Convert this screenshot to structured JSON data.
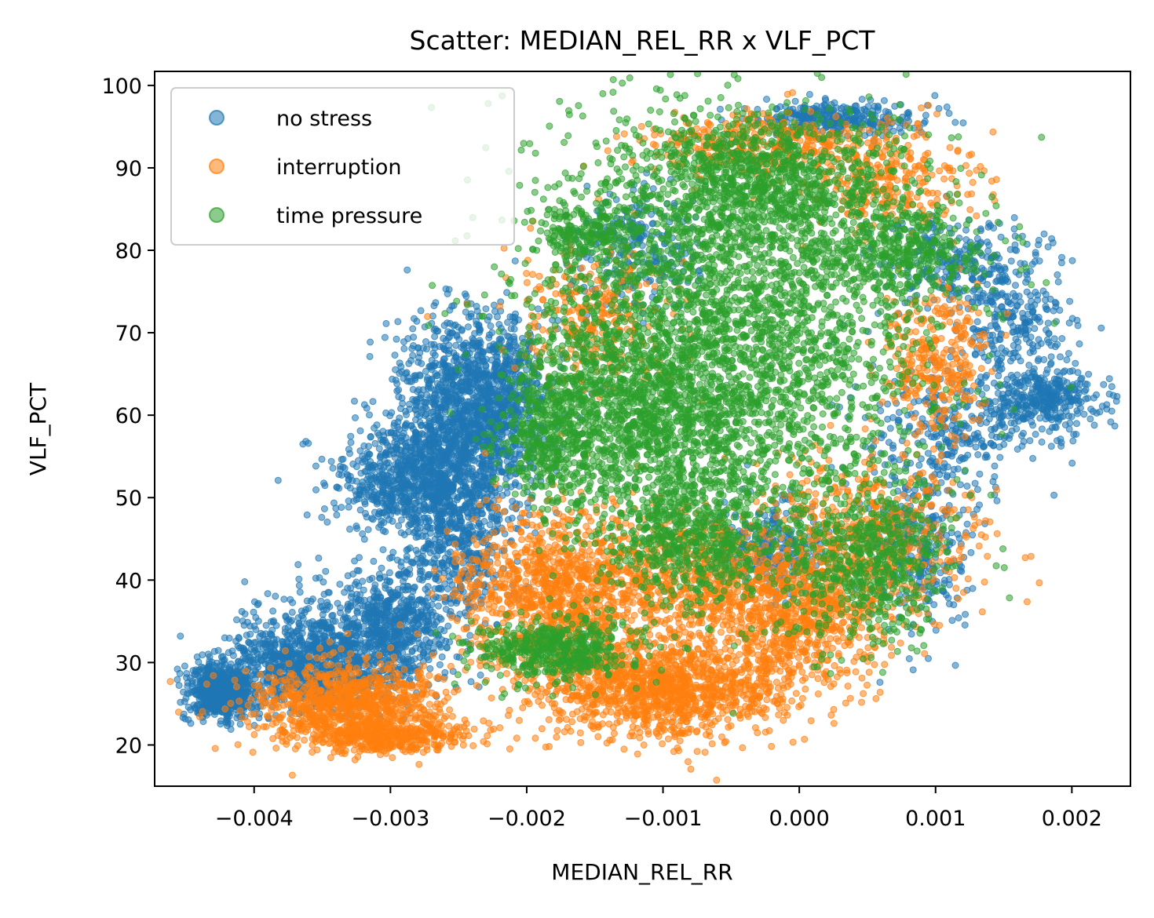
{
  "chart_data": {
    "type": "scatter",
    "title": "Scatter: MEDIAN_REL_RR x VLF_PCT",
    "xlabel": "MEDIAN_REL_RR",
    "ylabel": "VLF_PCT",
    "xlim": [
      -0.00473,
      0.00243
    ],
    "ylim": [
      15,
      101.7
    ],
    "x_ticks": [
      -0.004,
      -0.003,
      -0.002,
      -0.001,
      0.0,
      0.001,
      0.002
    ],
    "x_tick_labels": [
      "−0.004",
      "−0.003",
      "−0.002",
      "−0.001",
      "0.000",
      "0.001",
      "0.002"
    ],
    "y_ticks": [
      20,
      30,
      40,
      50,
      60,
      70,
      80,
      90,
      100
    ],
    "y_tick_labels": [
      "20",
      "30",
      "40",
      "50",
      "60",
      "70",
      "80",
      "90",
      "100"
    ],
    "grid": false,
    "legend": {
      "placement": "top-left"
    },
    "series": [
      {
        "name": "no stress",
        "color": "#1f77b4",
        "clusters": [
          {
            "x": -0.00425,
            "y": 26.5,
            "sx": 0.00012,
            "sy": 1.6,
            "n": 700
          },
          {
            "x": -0.0036,
            "y": 30.0,
            "sx": 0.0003,
            "sy": 3.0,
            "n": 900
          },
          {
            "x": -0.003,
            "y": 34.0,
            "sx": 0.00025,
            "sy": 3.5,
            "n": 700
          },
          {
            "x": -0.0028,
            "y": 52.0,
            "sx": 0.0003,
            "sy": 3.0,
            "n": 800
          },
          {
            "x": -0.0025,
            "y": 60.0,
            "sx": 0.00025,
            "sy": 6.0,
            "n": 1000
          },
          {
            "x": -0.0022,
            "y": 62.0,
            "sx": 0.0002,
            "sy": 5.0,
            "n": 600
          },
          {
            "x": -0.0025,
            "y": 44.0,
            "sx": 0.00018,
            "sy": 4.0,
            "n": 400
          },
          {
            "x": -0.0012,
            "y": 80.0,
            "sx": 0.00025,
            "sy": 4.0,
            "n": 250
          },
          {
            "x": 0.0003,
            "y": 96.0,
            "sx": 0.0003,
            "sy": 1.0,
            "n": 300
          },
          {
            "x": 0.0012,
            "y": 78.0,
            "sx": 0.0003,
            "sy": 3.0,
            "n": 300
          },
          {
            "x": 0.0018,
            "y": 62.0,
            "sx": 0.0002,
            "sy": 2.0,
            "n": 350
          },
          {
            "x": 0.0011,
            "y": 58.0,
            "sx": 0.0003,
            "sy": 4.0,
            "n": 300
          },
          {
            "x": 0.0009,
            "y": 44.0,
            "sx": 0.0002,
            "sy": 5.0,
            "n": 300
          },
          {
            "x": -0.0002,
            "y": 44.0,
            "sx": 0.0002,
            "sy": 3.0,
            "n": 250
          },
          {
            "x": 0.0016,
            "y": 70.0,
            "sx": 0.0002,
            "sy": 3.0,
            "n": 200
          }
        ]
      },
      {
        "name": "interruption",
        "color": "#ff7f0e",
        "clusters": [
          {
            "x": -0.0033,
            "y": 25.0,
            "sx": 0.00035,
            "sy": 2.5,
            "n": 900
          },
          {
            "x": -0.003,
            "y": 21.0,
            "sx": 0.0003,
            "sy": 1.0,
            "n": 350
          },
          {
            "x": -0.0018,
            "y": 38.0,
            "sx": 0.00035,
            "sy": 5.0,
            "n": 1000
          },
          {
            "x": -0.001,
            "y": 27.0,
            "sx": 0.00045,
            "sy": 3.0,
            "n": 1200
          },
          {
            "x": -0.0008,
            "y": 40.0,
            "sx": 0.0004,
            "sy": 4.0,
            "n": 700
          },
          {
            "x": 0.0,
            "y": 35.0,
            "sx": 0.0003,
            "sy": 4.0,
            "n": 600
          },
          {
            "x": 0.0005,
            "y": 45.0,
            "sx": 0.0004,
            "sy": 5.0,
            "n": 600
          },
          {
            "x": -0.0015,
            "y": 72.0,
            "sx": 0.0003,
            "sy": 5.0,
            "n": 300
          },
          {
            "x": -0.0002,
            "y": 93.0,
            "sx": 0.0005,
            "sy": 2.0,
            "n": 400
          },
          {
            "x": 0.0007,
            "y": 88.0,
            "sx": 0.0003,
            "sy": 3.0,
            "n": 250
          },
          {
            "x": 0.001,
            "y": 67.0,
            "sx": 0.0002,
            "sy": 4.0,
            "n": 300
          }
        ]
      },
      {
        "name": "time pressure",
        "color": "#2ca02c",
        "clusters": [
          {
            "x": -0.0005,
            "y": 70.0,
            "sx": 0.0007,
            "sy": 13.0,
            "n": 3000
          },
          {
            "x": -0.0012,
            "y": 60.0,
            "sx": 0.0004,
            "sy": 6.0,
            "n": 900
          },
          {
            "x": -0.0003,
            "y": 88.0,
            "sx": 0.0005,
            "sy": 4.0,
            "n": 900
          },
          {
            "x": -0.0018,
            "y": 31.5,
            "sx": 0.0003,
            "sy": 1.8,
            "n": 500
          },
          {
            "x": 0.0005,
            "y": 42.0,
            "sx": 0.0003,
            "sy": 5.0,
            "n": 600
          },
          {
            "x": -0.0008,
            "y": 45.0,
            "sx": 0.0003,
            "sy": 4.0,
            "n": 500
          },
          {
            "x": -0.0018,
            "y": 58.0,
            "sx": 0.0002,
            "sy": 5.0,
            "n": 400
          },
          {
            "x": 0.0008,
            "y": 80.0,
            "sx": 0.0003,
            "sy": 3.0,
            "n": 400
          },
          {
            "x": -0.0016,
            "y": 82.0,
            "sx": 0.0002,
            "sy": 2.0,
            "n": 200
          }
        ]
      }
    ]
  }
}
